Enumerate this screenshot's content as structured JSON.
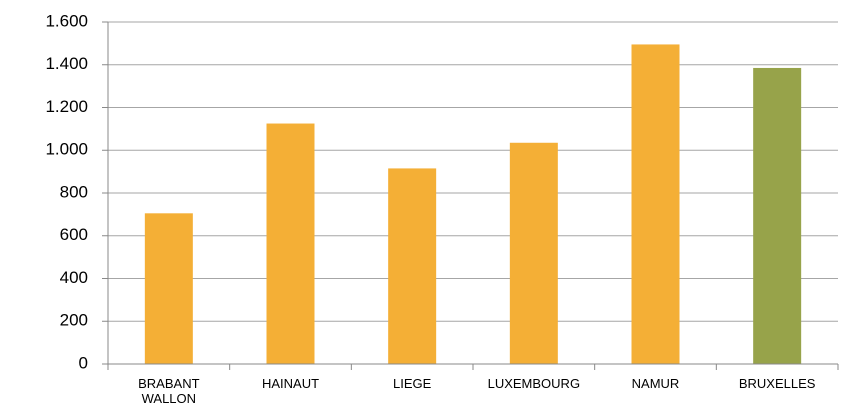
{
  "chart_data": {
    "type": "bar",
    "categories": [
      "BRABANT WALLON",
      "HAINAUT",
      "LIEGE",
      "LUXEMBOURG",
      "NAMUR",
      "BRUXELLES"
    ],
    "values": [
      705,
      1125,
      915,
      1035,
      1495,
      1385
    ],
    "colors": [
      "#f4af36",
      "#f4af36",
      "#f4af36",
      "#f4af36",
      "#f4af36",
      "#97a34a"
    ],
    "ylim": [
      0,
      1600
    ],
    "yticks": [
      0,
      200,
      400,
      600,
      800,
      {
        "value": 1000,
        "label": "1.000"
      },
      {
        "value": 1200,
        "label": "1.200"
      },
      {
        "value": 1400,
        "label": "1.400"
      },
      {
        "value": 1600,
        "label": "1.600"
      }
    ],
    "grid": true
  }
}
